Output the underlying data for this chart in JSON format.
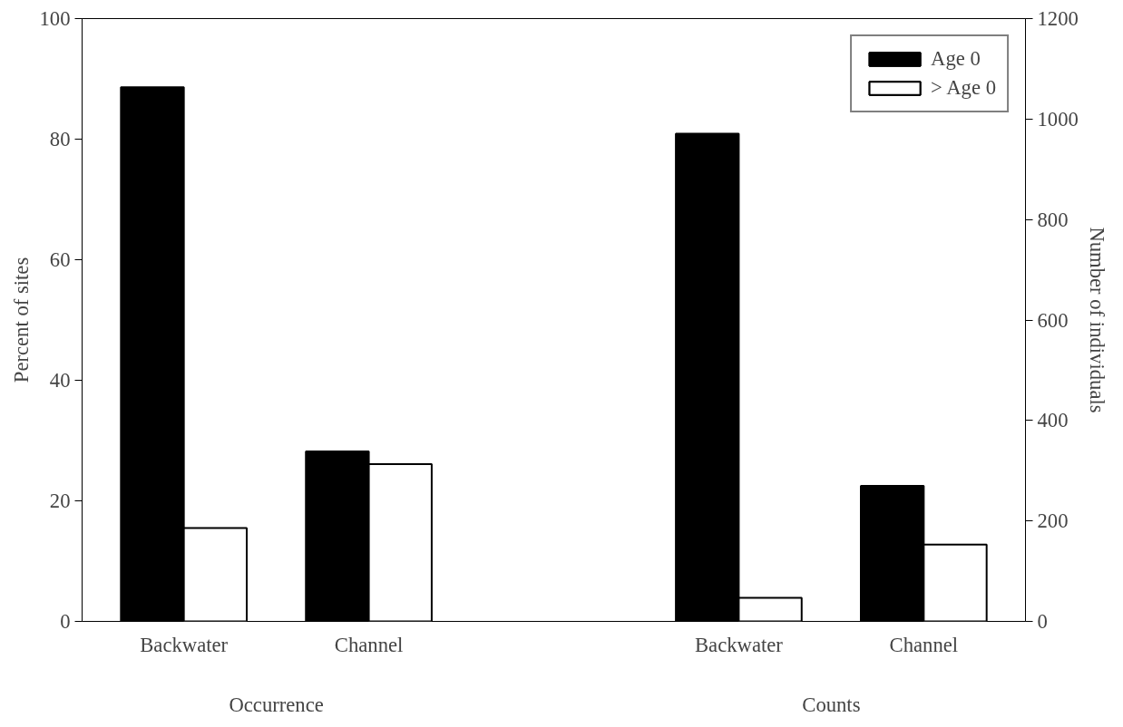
{
  "chart_data": {
    "type": "bar",
    "categories": [
      "Backwater",
      "Channel",
      null,
      "Backwater",
      "Channel"
    ],
    "series": [
      {
        "name": "Age 0",
        "color": "#000000",
        "values": [
          88.6,
          28.2,
          null,
          null,
          null
        ]
      },
      {
        "name": "> Age 0",
        "color": "#ffffff",
        "values": [
          15.5,
          26.1,
          null,
          null,
          null
        ]
      },
      {
        "color": "#000000",
        "axis": "y2",
        "values": [
          null,
          null,
          null,
          971,
          270
        ]
      },
      {
        "color": "#ffffff",
        "axis": "y2",
        "values": [
          null,
          null,
          null,
          47,
          153
        ]
      }
    ],
    "ylabel": "Percent of sites",
    "y2label": "Number of individuals",
    "ylim": [
      0,
      100
    ],
    "yticks": [
      0,
      20,
      40,
      60,
      80,
      100
    ],
    "y2lim": [
      0,
      1200
    ],
    "y2ticks": [
      0,
      200,
      400,
      600,
      800,
      1000,
      1200
    ],
    "annotations": [
      "Occurrence",
      "Counts"
    ],
    "legend": "top right",
    "grid": false
  }
}
